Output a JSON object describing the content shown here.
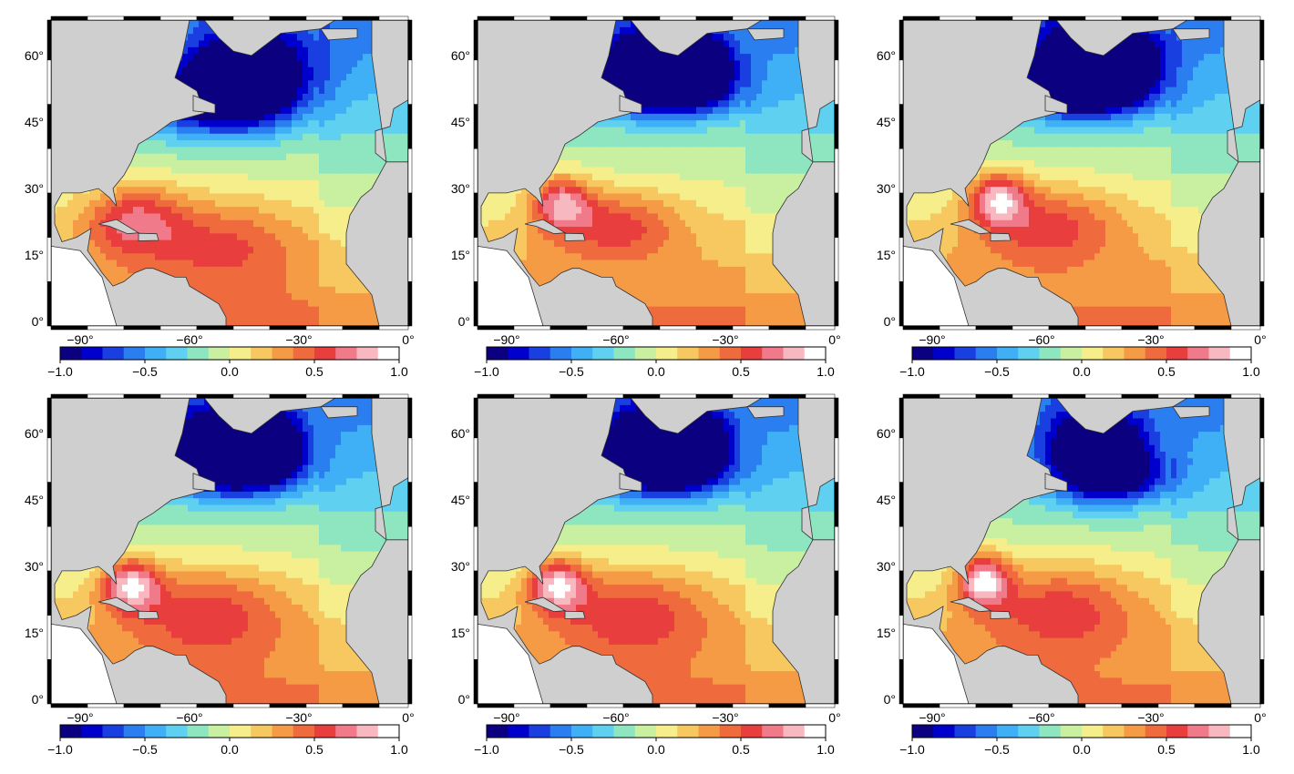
{
  "figure": {
    "colormap_stops": [
      "#0b0080",
      "#0000cc",
      "#1a3fe0",
      "#2b7ef0",
      "#3fb0f5",
      "#5fd0f0",
      "#8ee6c0",
      "#c8f0a0",
      "#f5ee8a",
      "#f8c860",
      "#f59a45",
      "#ef6a3c",
      "#e83e3e",
      "#f07a8a",
      "#f8b8c0",
      "#ffffff"
    ],
    "land_color": "#cfcfcf",
    "coast_color": "#333333"
  },
  "panels": [
    {
      "id": "p1",
      "map": {
        "lat_ticks": [
          "0°",
          "15°",
          "30°",
          "45°",
          "60°"
        ],
        "lon_ticks": [
          "−90°",
          "−60°",
          "−30°",
          "0°"
        ],
        "blobs": [
          {
            "lon": -43,
            "lat": 56,
            "v": -1.0,
            "rlon": 16,
            "rlat": 10
          },
          {
            "lon": -55,
            "lat": 50,
            "v": -0.7,
            "rlon": 20,
            "rlat": 8
          },
          {
            "lon": -75,
            "lat": 23,
            "v": 0.55,
            "rlon": 14,
            "rlat": 8
          },
          {
            "lon": -50,
            "lat": 18,
            "v": 0.35,
            "rlon": 20,
            "rlat": 10
          }
        ]
      },
      "colorbar": {
        "ticks": [
          "−1.0",
          "−0.5",
          "0.0",
          "0.5",
          "1.0"
        ],
        "vmin": -1.0,
        "vmax": 1.0
      }
    },
    {
      "id": "p2",
      "map": {
        "lat_ticks": [
          "0°",
          "15°",
          "30°",
          "45°",
          "60°"
        ],
        "lon_ticks": [
          "−90°",
          "−60°",
          "−30°",
          "0°"
        ],
        "blobs": [
          {
            "lon": -52,
            "lat": 58,
            "v": -1.0,
            "rlon": 12,
            "rlat": 8
          },
          {
            "lon": -38,
            "lat": 58,
            "v": -1.0,
            "rlon": 10,
            "rlat": 7
          },
          {
            "lon": -45,
            "lat": 52,
            "v": -0.7,
            "rlon": 18,
            "rlat": 6
          },
          {
            "lon": -75,
            "lat": 27,
            "v": 0.65,
            "rlon": 8,
            "rlat": 6
          },
          {
            "lon": -60,
            "lat": 22,
            "v": 0.45,
            "rlon": 18,
            "rlat": 8
          }
        ]
      },
      "colorbar": {
        "ticks": [
          "−1.0",
          "−0.5",
          "0.0",
          "0.5",
          "1.0"
        ],
        "vmin": -1.0,
        "vmax": 1.0
      }
    },
    {
      "id": "p3",
      "map": {
        "lat_ticks": [
          "0°",
          "15°",
          "30°",
          "45°",
          "60°"
        ],
        "lon_ticks": [
          "−90°",
          "−60°",
          "−30°",
          "0°"
        ],
        "blobs": [
          {
            "lon": -52,
            "lat": 58,
            "v": -1.0,
            "rlon": 12,
            "rlat": 9
          },
          {
            "lon": -36,
            "lat": 59,
            "v": -0.95,
            "rlon": 10,
            "rlat": 7
          },
          {
            "lon": -45,
            "lat": 51,
            "v": -0.6,
            "rlon": 18,
            "rlat": 6
          },
          {
            "lon": -72,
            "lat": 28,
            "v": 0.7,
            "rlon": 8,
            "rlat": 6
          },
          {
            "lon": -58,
            "lat": 22,
            "v": 0.45,
            "rlon": 20,
            "rlat": 9
          }
        ]
      },
      "colorbar": {
        "ticks": [
          "−1.0",
          "−0.5",
          "0.0",
          "0.5",
          "1.0"
        ],
        "vmin": -1.0,
        "vmax": 1.0
      }
    },
    {
      "id": "p4",
      "map": {
        "lat_ticks": [
          "0°",
          "15°",
          "30°",
          "45°",
          "60°"
        ],
        "lon_ticks": [
          "−90°",
          "−60°",
          "−30°",
          "0°"
        ],
        "blobs": [
          {
            "lon": -53,
            "lat": 58,
            "v": -1.0,
            "rlon": 12,
            "rlat": 8
          },
          {
            "lon": -38,
            "lat": 58,
            "v": -0.95,
            "rlon": 10,
            "rlat": 7
          },
          {
            "lon": -46,
            "lat": 51,
            "v": -0.6,
            "rlon": 18,
            "rlat": 6
          },
          {
            "lon": -76,
            "lat": 26,
            "v": 0.75,
            "rlon": 8,
            "rlat": 6
          },
          {
            "lon": -55,
            "lat": 20,
            "v": 0.45,
            "rlon": 22,
            "rlat": 10
          }
        ]
      },
      "colorbar": {
        "ticks": [
          "−1.0",
          "−0.5",
          "0.0",
          "0.5",
          "1.0"
        ],
        "vmin": -1.0,
        "vmax": 1.0
      }
    },
    {
      "id": "p5",
      "map": {
        "lat_ticks": [
          "0°",
          "15°",
          "30°",
          "45°",
          "60°"
        ],
        "lon_ticks": [
          "−90°",
          "−60°",
          "−30°",
          "0°"
        ],
        "blobs": [
          {
            "lon": -52,
            "lat": 58,
            "v": -1.0,
            "rlon": 12,
            "rlat": 8
          },
          {
            "lon": -38,
            "lat": 58,
            "v": -1.0,
            "rlon": 10,
            "rlat": 7
          },
          {
            "lon": -46,
            "lat": 51,
            "v": -0.65,
            "rlon": 18,
            "rlat": 6
          },
          {
            "lon": -76,
            "lat": 26,
            "v": 0.75,
            "rlon": 8,
            "rlat": 6
          },
          {
            "lon": -55,
            "lat": 20,
            "v": 0.45,
            "rlon": 22,
            "rlat": 10
          }
        ]
      },
      "colorbar": {
        "ticks": [
          "−1.0",
          "−0.5",
          "0.0",
          "0.5",
          "1.0"
        ],
        "vmin": -1.0,
        "vmax": 1.0
      }
    },
    {
      "id": "p6",
      "map": {
        "lat_ticks": [
          "0°",
          "15°",
          "30°",
          "45°",
          "60°"
        ],
        "lon_ticks": [
          "−90°",
          "−60°",
          "−30°",
          "0°"
        ],
        "blobs": [
          {
            "lon": -45,
            "lat": 57,
            "v": -1.0,
            "rlon": 14,
            "rlat": 9
          },
          {
            "lon": -40,
            "lat": 50,
            "v": -0.6,
            "rlon": 16,
            "rlat": 6
          },
          {
            "lon": -76,
            "lat": 27,
            "v": 0.8,
            "rlon": 7,
            "rlat": 6
          },
          {
            "lon": -55,
            "lat": 21,
            "v": 0.45,
            "rlon": 22,
            "rlat": 10
          }
        ]
      },
      "colorbar": {
        "ticks": [
          "−1.0",
          "−0.5",
          "0.0",
          "0.5",
          "1.0"
        ],
        "vmin": -1.0,
        "vmax": 1.0
      }
    }
  ]
}
